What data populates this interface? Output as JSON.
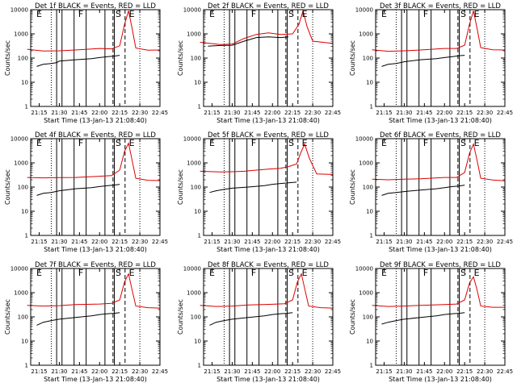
{
  "page": {
    "background": "#ffffff"
  },
  "colors": {
    "events": "#000000",
    "lld": "#dd0000"
  },
  "chart_data": {
    "type": "line",
    "layout": "3x3 grid",
    "y_scale": "log",
    "ylim": [
      1,
      10000
    ],
    "ylabel": "Counts/sec",
    "xlabel": "Start Time (13-Jan-13 21:08:40)",
    "x_ticks": [
      "21:15",
      "21:30",
      "21:45",
      "22:00",
      "22:15",
      "22:30",
      "22:45"
    ],
    "y_ticks": [
      "1",
      "10",
      "100",
      "1000",
      "10000"
    ],
    "x_range": [
      "21:08:40",
      "22:45"
    ],
    "series_names_from_title": {
      "black": "Events",
      "red": "LLD"
    },
    "markers": {
      "dotted": [
        "21:24",
        "22:30"
      ],
      "solid": [
        "21:28",
        "21:32",
        "21:41",
        "21:50",
        "22:04",
        "22:11"
      ],
      "dashed": [
        "22:10",
        "22:19"
      ],
      "letters": [
        {
          "text": "E",
          "at": "21:15"
        },
        {
          "text": "F",
          "at": "21:46"
        },
        {
          "text": "S",
          "at": "22:14"
        },
        {
          "text": "E",
          "at": "22:24"
        }
      ]
    },
    "panels": [
      {
        "title": "Det 1f BLACK = Events, RED = LLD",
        "series": [
          {
            "key": "black",
            "values": [
              [
                21.22,
                45
              ],
              [
                21.3,
                55
              ],
              [
                21.4,
                60
              ],
              [
                21.47,
                65
              ],
              [
                21.5,
                75
              ],
              [
                21.7,
                85
              ],
              [
                21.9,
                95
              ],
              [
                22.0,
                105
              ],
              [
                22.1,
                115
              ],
              [
                22.18,
                120
              ],
              [
                22.25,
                130
              ]
            ]
          },
          {
            "key": "red",
            "values": [
              [
                21.1,
                230
              ],
              [
                21.3,
                195
              ],
              [
                21.5,
                200
              ],
              [
                21.7,
                215
              ],
              [
                22.0,
                250
              ],
              [
                22.15,
                240
              ],
              [
                22.25,
                320
              ],
              [
                22.31,
                2500
              ],
              [
                22.36,
                9000
              ],
              [
                22.4,
                2000
              ],
              [
                22.45,
                260
              ],
              [
                22.6,
                210
              ],
              [
                22.75,
                215
              ]
            ]
          }
        ]
      },
      {
        "title": "Det 2f BLACK = Events, RED = LLD",
        "series": [
          {
            "key": "black",
            "values": [
              [
                21.2,
                310
              ],
              [
                21.35,
                330
              ],
              [
                21.5,
                340
              ],
              [
                21.65,
                500
              ],
              [
                21.8,
                700
              ],
              [
                21.95,
                750
              ],
              [
                22.1,
                700
              ],
              [
                22.2,
                750
              ]
            ]
          },
          {
            "key": "red",
            "values": [
              [
                21.1,
                450
              ],
              [
                21.35,
                360
              ],
              [
                21.5,
                380
              ],
              [
                21.65,
                650
              ],
              [
                21.8,
                950
              ],
              [
                21.95,
                1100
              ],
              [
                22.1,
                950
              ],
              [
                22.25,
                1000
              ],
              [
                22.33,
                2500
              ],
              [
                22.38,
                9000
              ],
              [
                22.43,
                2000
              ],
              [
                22.5,
                500
              ],
              [
                22.75,
                400
              ]
            ]
          }
        ]
      },
      {
        "title": "Det 3f BLACK = Events, RED = LLD",
        "series": [
          {
            "key": "black",
            "values": [
              [
                21.22,
                45
              ],
              [
                21.3,
                55
              ],
              [
                21.4,
                60
              ],
              [
                21.5,
                70
              ],
              [
                21.7,
                85
              ],
              [
                21.9,
                95
              ],
              [
                22.0,
                105
              ],
              [
                22.1,
                115
              ],
              [
                22.18,
                125
              ],
              [
                22.25,
                130
              ]
            ]
          },
          {
            "key": "red",
            "values": [
              [
                21.1,
                220
              ],
              [
                21.3,
                190
              ],
              [
                21.5,
                200
              ],
              [
                21.7,
                215
              ],
              [
                22.0,
                250
              ],
              [
                22.15,
                250
              ],
              [
                22.25,
                340
              ],
              [
                22.31,
                2500
              ],
              [
                22.36,
                9000
              ],
              [
                22.4,
                2000
              ],
              [
                22.45,
                270
              ],
              [
                22.6,
                220
              ],
              [
                22.75,
                215
              ]
            ]
          }
        ]
      },
      {
        "title": "Det 4f BLACK = Events, RED = LLD",
        "series": [
          {
            "key": "black",
            "values": [
              [
                21.22,
                45
              ],
              [
                21.3,
                55
              ],
              [
                21.4,
                60
              ],
              [
                21.5,
                70
              ],
              [
                21.7,
                85
              ],
              [
                21.9,
                95
              ],
              [
                22.0,
                105
              ],
              [
                22.1,
                115
              ],
              [
                22.18,
                120
              ],
              [
                22.25,
                130
              ]
            ]
          },
          {
            "key": "red",
            "values": [
              [
                21.1,
                250
              ],
              [
                21.3,
                240
              ],
              [
                21.5,
                245
              ],
              [
                21.7,
                250
              ],
              [
                22.0,
                280
              ],
              [
                22.15,
                300
              ],
              [
                22.25,
                500
              ],
              [
                22.31,
                3000
              ],
              [
                22.36,
                6500
              ],
              [
                22.4,
                1500
              ],
              [
                22.45,
                230
              ],
              [
                22.6,
                190
              ],
              [
                22.75,
                185
              ]
            ]
          }
        ]
      },
      {
        "title": "Det 5f BLACK = Events, RED = LLD",
        "series": [
          {
            "key": "black",
            "values": [
              [
                21.22,
                60
              ],
              [
                21.3,
                70
              ],
              [
                21.4,
                80
              ],
              [
                21.5,
                90
              ],
              [
                21.7,
                100
              ],
              [
                21.9,
                115
              ],
              [
                22.0,
                130
              ],
              [
                22.1,
                140
              ],
              [
                22.2,
                150
              ],
              [
                22.3,
                160
              ]
            ]
          },
          {
            "key": "red",
            "values": [
              [
                21.1,
                450
              ],
              [
                21.35,
                420
              ],
              [
                21.5,
                430
              ],
              [
                21.65,
                450
              ],
              [
                21.8,
                500
              ],
              [
                21.95,
                550
              ],
              [
                22.1,
                600
              ],
              [
                22.2,
                700
              ],
              [
                22.3,
                900
              ],
              [
                22.35,
                2500
              ],
              [
                22.4,
                6000
              ],
              [
                22.46,
                1500
              ],
              [
                22.55,
                350
              ],
              [
                22.75,
                330
              ]
            ]
          }
        ]
      },
      {
        "title": "Det 6f BLACK = Events, RED = LLD",
        "series": [
          {
            "key": "black",
            "values": [
              [
                21.22,
                45
              ],
              [
                21.3,
                55
              ],
              [
                21.4,
                60
              ],
              [
                21.5,
                65
              ],
              [
                21.7,
                75
              ],
              [
                21.9,
                85
              ],
              [
                22.0,
                95
              ],
              [
                22.1,
                105
              ],
              [
                22.18,
                110
              ],
              [
                22.25,
                120
              ]
            ]
          },
          {
            "key": "red",
            "values": [
              [
                21.1,
                210
              ],
              [
                21.3,
                200
              ],
              [
                21.5,
                210
              ],
              [
                21.7,
                220
              ],
              [
                22.0,
                250
              ],
              [
                22.15,
                250
              ],
              [
                22.25,
                400
              ],
              [
                22.31,
                2500
              ],
              [
                22.36,
                6000
              ],
              [
                22.4,
                1500
              ],
              [
                22.45,
                230
              ],
              [
                22.6,
                195
              ],
              [
                22.75,
                180
              ]
            ]
          }
        ]
      },
      {
        "title": "Det 7f BLACK = Events, RED = LLD",
        "series": [
          {
            "key": "black",
            "values": [
              [
                21.22,
                45
              ],
              [
                21.3,
                60
              ],
              [
                21.4,
                70
              ],
              [
                21.5,
                80
              ],
              [
                21.7,
                95
              ],
              [
                21.9,
                110
              ],
              [
                22.0,
                125
              ],
              [
                22.1,
                135
              ],
              [
                22.18,
                140
              ],
              [
                22.25,
                150
              ]
            ]
          },
          {
            "key": "red",
            "values": [
              [
                21.1,
                300
              ],
              [
                21.3,
                280
              ],
              [
                21.5,
                290
              ],
              [
                21.7,
                320
              ],
              [
                22.0,
                340
              ],
              [
                22.15,
                360
              ],
              [
                22.25,
                500
              ],
              [
                22.31,
                2800
              ],
              [
                22.36,
                6000
              ],
              [
                22.4,
                1500
              ],
              [
                22.45,
                280
              ],
              [
                22.6,
                240
              ],
              [
                22.75,
                230
              ]
            ]
          }
        ]
      },
      {
        "title": "Det 8f BLACK = Events, RED = LLD",
        "series": [
          {
            "key": "black",
            "values": [
              [
                21.22,
                45
              ],
              [
                21.3,
                60
              ],
              [
                21.4,
                70
              ],
              [
                21.5,
                80
              ],
              [
                21.7,
                95
              ],
              [
                21.9,
                110
              ],
              [
                22.0,
                125
              ],
              [
                22.1,
                135
              ],
              [
                22.18,
                140
              ],
              [
                22.25,
                150
              ]
            ]
          },
          {
            "key": "red",
            "values": [
              [
                21.1,
                300
              ],
              [
                21.3,
                270
              ],
              [
                21.5,
                280
              ],
              [
                21.7,
                310
              ],
              [
                22.0,
                330
              ],
              [
                22.15,
                350
              ],
              [
                22.25,
                500
              ],
              [
                22.31,
                2800
              ],
              [
                22.36,
                6000
              ],
              [
                22.4,
                1500
              ],
              [
                22.45,
                280
              ],
              [
                22.6,
                240
              ],
              [
                22.75,
                230
              ]
            ]
          }
        ]
      },
      {
        "title": "Det 9f BLACK = Events, RED = LLD",
        "series": [
          {
            "key": "black",
            "values": [
              [
                21.22,
                50
              ],
              [
                21.3,
                60
              ],
              [
                21.4,
                70
              ],
              [
                21.5,
                80
              ],
              [
                21.7,
                95
              ],
              [
                21.9,
                110
              ],
              [
                22.0,
                125
              ],
              [
                22.1,
                135
              ],
              [
                22.18,
                140
              ],
              [
                22.25,
                150
              ]
            ]
          },
          {
            "key": "red",
            "values": [
              [
                21.1,
                300
              ],
              [
                21.3,
                270
              ],
              [
                21.5,
                280
              ],
              [
                21.7,
                300
              ],
              [
                22.0,
                320
              ],
              [
                22.15,
                340
              ],
              [
                22.25,
                500
              ],
              [
                22.31,
                2500
              ],
              [
                22.36,
                4500
              ],
              [
                22.4,
                1500
              ],
              [
                22.45,
                280
              ],
              [
                22.6,
                250
              ],
              [
                22.75,
                250
              ]
            ]
          }
        ]
      }
    ]
  }
}
